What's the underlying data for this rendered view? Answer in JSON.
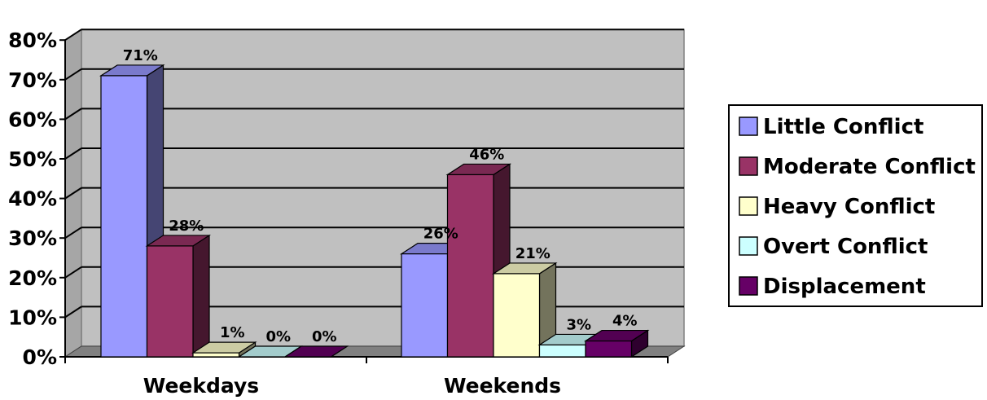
{
  "chart_data": {
    "type": "bar",
    "three_d": true,
    "categories": [
      "Weekdays",
      "Weekends"
    ],
    "series": [
      {
        "name": "Little Conflict",
        "values": [
          71,
          26
        ],
        "labels": [
          "71%",
          "26%"
        ],
        "color": "#9999ff"
      },
      {
        "name": "Moderate Conflict",
        "values": [
          28,
          46
        ],
        "labels": [
          "28%",
          "46%"
        ],
        "color": "#993366"
      },
      {
        "name": "Heavy Conflict",
        "values": [
          1,
          21
        ],
        "labels": [
          "1%",
          "21%"
        ],
        "color": "#ffffcc"
      },
      {
        "name": "Overt Conflict",
        "values": [
          0,
          3
        ],
        "labels": [
          "0%",
          "3%"
        ],
        "color": "#ccffff"
      },
      {
        "name": "Displacement",
        "values": [
          0,
          4
        ],
        "labels": [
          "0%",
          "4%"
        ],
        "color": "#660066"
      }
    ],
    "y_ticks": [
      "0%",
      "10%",
      "20%",
      "30%",
      "40%",
      "50%",
      "60%",
      "70%",
      "80%"
    ],
    "ylim": [
      0,
      80
    ],
    "grid": true,
    "legend_position": "right",
    "plot_background": "#c0c0c0"
  }
}
